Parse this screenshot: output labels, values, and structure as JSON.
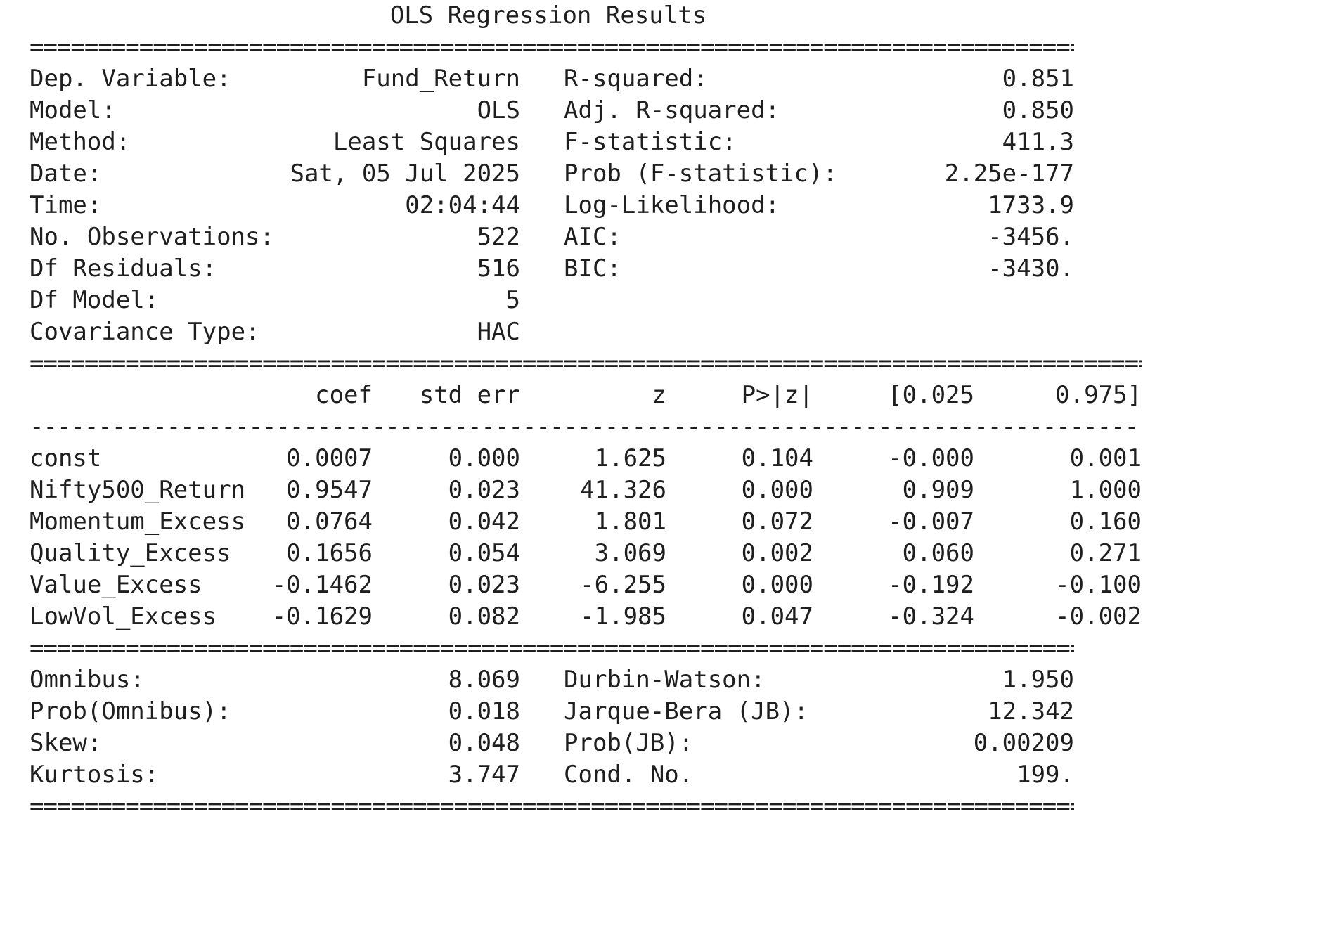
{
  "title": "OLS Regression Results",
  "rule_double": "==================================================================================================",
  "rule_single": "--------------------------------------------------------------------------------------------------",
  "summary_top": [
    {
      "label": "Dep. Variable:",
      "value": "Fund_Return",
      "label2": "R-squared:",
      "value2": "0.851"
    },
    {
      "label": "Model:",
      "value": "OLS",
      "label2": "Adj. R-squared:",
      "value2": "0.850"
    },
    {
      "label": "Method:",
      "value": "Least Squares",
      "label2": "F-statistic:",
      "value2": "411.3"
    },
    {
      "label": "Date:",
      "value": "Sat, 05 Jul 2025",
      "label2": "Prob (F-statistic):",
      "value2": "2.25e-177"
    },
    {
      "label": "Time:",
      "value": "02:04:44",
      "label2": "Log-Likelihood:",
      "value2": "1733.9"
    },
    {
      "label": "No. Observations:",
      "value": "522",
      "label2": "AIC:",
      "value2": "-3456."
    },
    {
      "label": "Df Residuals:",
      "value": "516",
      "label2": "BIC:",
      "value2": "-3430."
    },
    {
      "label": "Df Model:",
      "value": "5",
      "label2": "",
      "value2": ""
    },
    {
      "label": "Covariance Type:",
      "value": "HAC",
      "label2": "",
      "value2": ""
    }
  ],
  "coef_headers": [
    "coef",
    "std err",
    "z",
    "P>|z|",
    "[0.025",
    "0.975]"
  ],
  "coef_rows": [
    {
      "name": "const",
      "coef": "0.0007",
      "std_err": "0.000",
      "z": "1.625",
      "p": "0.104",
      "lo": "-0.000",
      "hi": "0.001"
    },
    {
      "name": "Nifty500_Return",
      "coef": "0.9547",
      "std_err": "0.023",
      "z": "41.326",
      "p": "0.000",
      "lo": "0.909",
      "hi": "1.000"
    },
    {
      "name": "Momentum_Excess",
      "coef": "0.0764",
      "std_err": "0.042",
      "z": "1.801",
      "p": "0.072",
      "lo": "-0.007",
      "hi": "0.160"
    },
    {
      "name": "Quality_Excess",
      "coef": "0.1656",
      "std_err": "0.054",
      "z": "3.069",
      "p": "0.002",
      "lo": "0.060",
      "hi": "0.271"
    },
    {
      "name": "Value_Excess",
      "coef": "-0.1462",
      "std_err": "0.023",
      "z": "-6.255",
      "p": "0.000",
      "lo": "-0.192",
      "hi": "-0.100"
    },
    {
      "name": "LowVol_Excess",
      "coef": "-0.1629",
      "std_err": "0.082",
      "z": "-1.985",
      "p": "0.047",
      "lo": "-0.324",
      "hi": "-0.002"
    }
  ],
  "summary_bottom": [
    {
      "label": "Omnibus:",
      "value": "8.069",
      "label2": "Durbin-Watson:",
      "value2": "1.950"
    },
    {
      "label": "Prob(Omnibus):",
      "value": "0.018",
      "label2": "Jarque-Bera (JB):",
      "value2": "12.342"
    },
    {
      "label": "Skew:",
      "value": "0.048",
      "label2": "Prob(JB):",
      "value2": "0.00209"
    },
    {
      "label": "Kurtosis:",
      "value": "3.747",
      "label2": "Cond. No.",
      "value2": "199."
    }
  ]
}
